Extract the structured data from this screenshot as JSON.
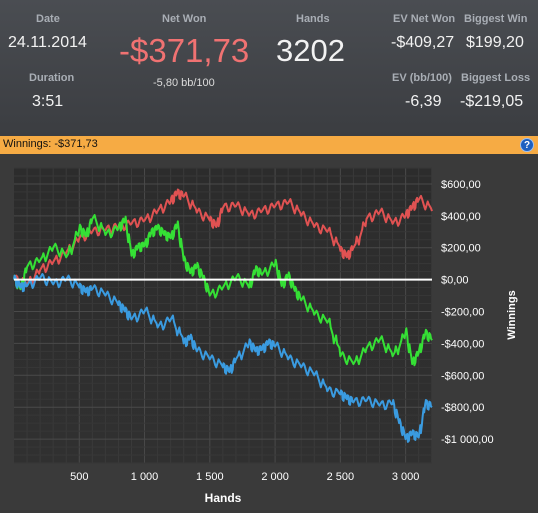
{
  "stats": {
    "date_label": "Date",
    "date": "24.11.2014",
    "duration_label": "Duration",
    "duration": "3:51",
    "net_won_label": "Net Won",
    "net_won": "-$371,73",
    "net_won_bb": "-5,80 bb/100",
    "hands_label": "Hands",
    "hands": "3202",
    "ev_net_won_label": "EV Net Won",
    "ev_net_won": "-$409,27",
    "biggest_win_label": "Biggest Win",
    "biggest_win": "$199,20",
    "ev_bb_label": "EV (bb/100)",
    "ev_bb": "-6,39",
    "biggest_loss_label": "Biggest Loss",
    "biggest_loss": "-$219,05"
  },
  "panel": {
    "title": "Winnings:  -$371,73",
    "help_icon": "?"
  },
  "colors": {
    "red": "#e05252",
    "green": "#35e035",
    "blue": "#3a9be0",
    "zero": "#ffffff",
    "net_won": "#f07272",
    "orange_bar": "#f6ab44"
  },
  "chart_data": {
    "type": "line",
    "xlabel": "Hands",
    "ylabel": "Winnings",
    "xlim": [
      0,
      3202
    ],
    "ylim": [
      -1150,
      700
    ],
    "x_ticks": [
      500,
      1000,
      1500,
      2000,
      2500,
      3000
    ],
    "x_tick_labels": [
      "500",
      "1 000",
      "1 500",
      "2 000",
      "2 500",
      "3 000"
    ],
    "y_ticks": [
      600,
      400,
      200,
      0,
      -200,
      -400,
      -600,
      -800,
      -1000
    ],
    "y_tick_labels": [
      "$600,00",
      "$400,00",
      "$200,00",
      "$0,00",
      "-$200,00",
      "-$400,00",
      "-$600,00",
      "-$800,00",
      "-$1 000,00"
    ],
    "grid": true,
    "series": [
      {
        "color": "#e05252",
        "x": [
          0,
          100,
          200,
          300,
          400,
          500,
          600,
          700,
          800,
          900,
          1000,
          1100,
          1200,
          1250,
          1300,
          1400,
          1500,
          1550,
          1600,
          1700,
          1800,
          1900,
          2000,
          2100,
          2200,
          2300,
          2400,
          2500,
          2550,
          2600,
          2700,
          2800,
          2900,
          3000,
          3050,
          3100,
          3202
        ],
        "y": [
          0,
          -30,
          60,
          110,
          170,
          260,
          300,
          310,
          330,
          350,
          370,
          430,
          490,
          540,
          520,
          420,
          370,
          330,
          450,
          460,
          400,
          430,
          460,
          480,
          400,
          330,
          300,
          180,
          140,
          200,
          380,
          420,
          350,
          400,
          450,
          500,
          430
        ]
      },
      {
        "color": "#35e035",
        "x": [
          0,
          50,
          100,
          200,
          300,
          400,
          500,
          550,
          600,
          700,
          800,
          850,
          900,
          950,
          1000,
          1050,
          1100,
          1150,
          1200,
          1250,
          1300,
          1350,
          1400,
          1450,
          1500,
          1600,
          1700,
          1800,
          1850,
          1900,
          2000,
          2050,
          2100,
          2150,
          2200,
          2300,
          2400,
          2500,
          2600,
          2700,
          2800,
          2900,
          3000,
          3050,
          3100,
          3150,
          3202
        ],
        "y": [
          0,
          -60,
          80,
          120,
          200,
          140,
          320,
          270,
          380,
          280,
          320,
          370,
          150,
          200,
          210,
          290,
          320,
          280,
          260,
          340,
          120,
          40,
          80,
          0,
          -100,
          -50,
          10,
          -50,
          60,
          30,
          100,
          -40,
          20,
          -70,
          -130,
          -220,
          -270,
          -480,
          -530,
          -430,
          -380,
          -480,
          -330,
          -530,
          -460,
          -340,
          -380
        ]
      },
      {
        "color": "#3a9be0",
        "x": [
          0,
          50,
          100,
          200,
          300,
          400,
          500,
          550,
          600,
          700,
          800,
          850,
          900,
          1000,
          1100,
          1200,
          1300,
          1350,
          1400,
          1500,
          1600,
          1650,
          1700,
          1800,
          1850,
          1900,
          1950,
          2000,
          2100,
          2200,
          2300,
          2400,
          2500,
          2550,
          2600,
          2700,
          2800,
          2900,
          2950,
          3000,
          3050,
          3100,
          3150,
          3202
        ],
        "y": [
          0,
          -50,
          -40,
          10,
          -30,
          0,
          -50,
          -80,
          -60,
          -100,
          -160,
          -200,
          -250,
          -200,
          -300,
          -250,
          -400,
          -370,
          -450,
          -500,
          -550,
          -580,
          -500,
          -400,
          -450,
          -440,
          -400,
          -420,
          -500,
          -550,
          -600,
          -700,
          -720,
          -750,
          -770,
          -760,
          -790,
          -780,
          -900,
          -1000,
          -970,
          -990,
          -780,
          -800
        ]
      }
    ]
  }
}
